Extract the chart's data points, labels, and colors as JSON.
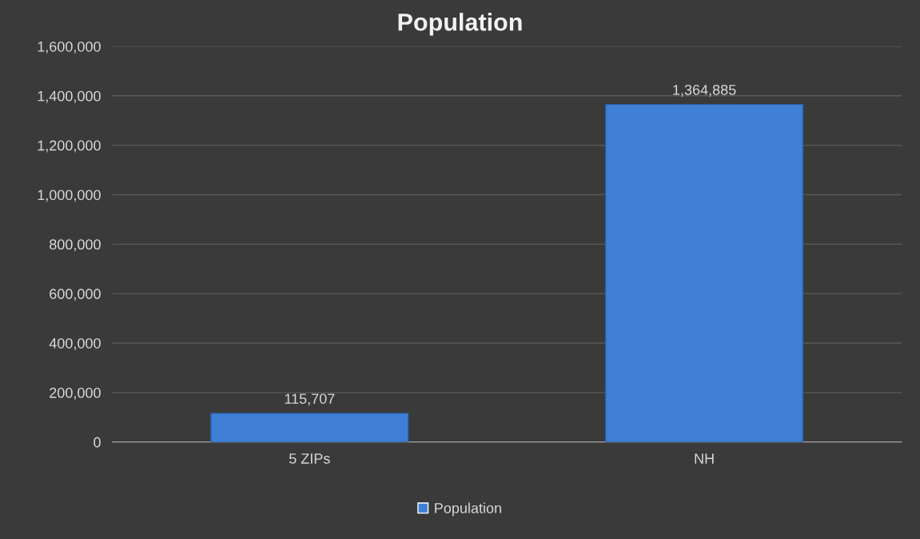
{
  "chart_data": {
    "type": "bar",
    "title": "Population",
    "categories": [
      "5 ZIPs",
      "NH"
    ],
    "series": [
      {
        "name": "Population",
        "color": "#3f80d6",
        "values": [
          115707,
          1364885
        ]
      }
    ],
    "ylim": [
      0,
      1600000
    ],
    "yticks": [
      {
        "value": 0,
        "label": "0"
      },
      {
        "value": 200000,
        "label": "200,000"
      },
      {
        "value": 400000,
        "label": "400,000"
      },
      {
        "value": 600000,
        "label": "600,000"
      },
      {
        "value": 800000,
        "label": "800,000"
      },
      {
        "value": 1000000,
        "label": "1,000,000"
      },
      {
        "value": 1200000,
        "label": "1,200,000"
      },
      {
        "value": 1400000,
        "label": "1,400,000"
      },
      {
        "value": 1600000,
        "label": "1,600,000"
      }
    ],
    "value_labels": [
      "115,707",
      "1,364,885"
    ],
    "grid": "y",
    "legend": "bottom"
  }
}
